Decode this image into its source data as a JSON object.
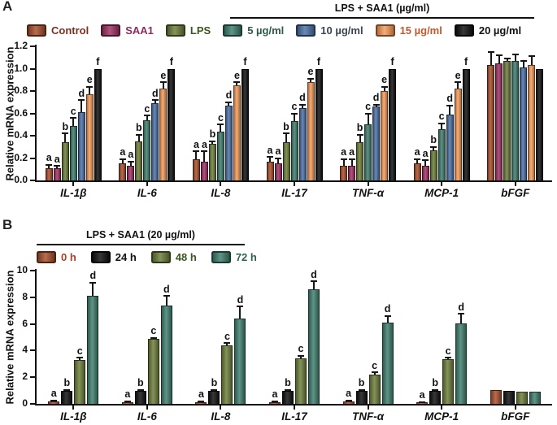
{
  "panelA": {
    "label": "A",
    "header": "LPS + SAA1 (µg/ml)",
    "legend": [
      {
        "label": "Control",
        "swatch": "#A9512E",
        "text": "#7E2F1D"
      },
      {
        "label": "SAA1",
        "swatch": "#A23367",
        "text": "#8E2B5C"
      },
      {
        "label": "LPS",
        "swatch": "#6E7E3C",
        "text": "#3C5520"
      },
      {
        "label": "5 µg/ml",
        "swatch": "#41806F",
        "text": "#2E5B44"
      },
      {
        "label": "10 µg/ml",
        "swatch": "#4E72A8",
        "text": "#3C4552"
      },
      {
        "label": "15 µg/ml",
        "swatch": "#F89D5C",
        "text": "#C05A2E"
      },
      {
        "label": "20 µg/ml",
        "swatch": "#121212",
        "text": "#121212"
      }
    ]
  },
  "panelB": {
    "label": "B",
    "header": "LPS + SAA1 (20 µg/ml)",
    "legend": [
      {
        "label": "0 h",
        "swatch": "#A9512E",
        "text": "#A8422A"
      },
      {
        "label": "24 h",
        "swatch": "#121212",
        "text": "#121212"
      },
      {
        "label": "48 h",
        "swatch": "#6E7E3C",
        "text": "#3C5520"
      },
      {
        "label": "72 h",
        "swatch": "#41806F",
        "text": "#2B5F50"
      }
    ]
  },
  "chart_data": [
    {
      "type": "bar",
      "panel": "A",
      "title": "LPS + SAA1 (µg/ml)",
      "ylabel": "Relative mRNA expression",
      "ylim": [
        0,
        1.2
      ],
      "yticks": [
        0,
        0.2,
        0.4,
        0.6,
        0.8,
        1.0,
        1.2
      ],
      "ytick_labels": [
        "0.0",
        "0.2",
        "0.4",
        "0.6",
        "0.8",
        "1.0",
        "1.2"
      ],
      "categories": [
        "IL-1β",
        "IL-6",
        "IL-8",
        "IL-17",
        "TNF-α",
        "MCP-1",
        "bFGF"
      ],
      "legend_position": "top",
      "grid": false,
      "series": [
        {
          "name": "Control",
          "color": "#A9512E",
          "values": [
            0.11,
            0.15,
            0.19,
            0.17,
            0.13,
            0.15,
            1.03
          ],
          "errors": [
            0.03,
            0.04,
            0.07,
            0.04,
            0.06,
            0.04,
            0.12
          ],
          "letters": [
            "a",
            "a",
            "a",
            "a",
            "a",
            "a",
            ""
          ]
        },
        {
          "name": "SAA1",
          "color": "#A23367",
          "values": [
            0.11,
            0.13,
            0.17,
            0.15,
            0.13,
            0.13,
            1.05
          ],
          "errors": [
            0.02,
            0.04,
            0.09,
            0.05,
            0.06,
            0.05,
            0.07
          ],
          "letters": [
            "a",
            "a",
            "a",
            "a",
            "a",
            "a",
            ""
          ]
        },
        {
          "name": "LPS",
          "color": "#6E7E3C",
          "values": [
            0.34,
            0.35,
            0.33,
            0.34,
            0.34,
            0.27,
            1.07
          ],
          "errors": [
            0.08,
            0.06,
            0.02,
            0.08,
            0.07,
            0.03,
            0.02
          ],
          "letters": [
            "b",
            "b",
            "b",
            "b",
            "b",
            "b",
            ""
          ]
        },
        {
          "name": "5 µg/ml",
          "color": "#41806F",
          "values": [
            0.49,
            0.54,
            0.44,
            0.53,
            0.5,
            0.46,
            1.07
          ],
          "errors": [
            0.07,
            0.04,
            0.06,
            0.07,
            0.1,
            0.05,
            0.06
          ],
          "letters": [
            "c",
            "c",
            "c",
            "c",
            "c",
            "c",
            ""
          ]
        },
        {
          "name": "10 µg/ml",
          "color": "#4E72A8",
          "values": [
            0.61,
            0.69,
            0.67,
            0.65,
            0.66,
            0.59,
            1.01
          ],
          "errors": [
            0.11,
            0.03,
            0.03,
            0.03,
            0.02,
            0.08,
            0.06
          ],
          "letters": [
            "d",
            "d",
            "d",
            "d",
            "d",
            "d",
            ""
          ]
        },
        {
          "name": "15 µg/ml",
          "color": "#F89D5C",
          "values": [
            0.77,
            0.82,
            0.85,
            0.88,
            0.8,
            0.82,
            1.03
          ],
          "errors": [
            0.07,
            0.06,
            0.03,
            0.03,
            0.04,
            0.06,
            0.08
          ],
          "letters": [
            "e",
            "e",
            "e",
            "e",
            "e",
            "e",
            ""
          ]
        },
        {
          "name": "20 µg/ml",
          "color": "#121212",
          "values": [
            1.0,
            1.0,
            1.0,
            1.0,
            1.0,
            1.0,
            1.0
          ],
          "errors": [
            0,
            0,
            0,
            0,
            0,
            0,
            0
          ],
          "letters": [
            "f",
            "f",
            "f",
            "f",
            "f",
            "f",
            ""
          ]
        }
      ]
    },
    {
      "type": "bar",
      "panel": "B",
      "title": "LPS + SAA1 (20 µg/ml)",
      "ylabel": "Relative mRNA expression",
      "ylim": [
        0,
        10
      ],
      "yticks": [
        0,
        2,
        4,
        6,
        8,
        10
      ],
      "ytick_labels": [
        "0",
        "2",
        "4",
        "6",
        "8",
        "10"
      ],
      "categories": [
        "IL-1β",
        "IL-6",
        "IL-8",
        "IL-17",
        "TNF-α",
        "MCP-1",
        "bFGF"
      ],
      "legend_position": "top",
      "grid": false,
      "series": [
        {
          "name": "0 h",
          "color": "#A9512E",
          "values": [
            0.2,
            0.15,
            0.15,
            0.15,
            0.2,
            0.1,
            1.05
          ],
          "errors": [
            0.05,
            0.05,
            0.05,
            0.05,
            0.05,
            0.05,
            0
          ],
          "letters": [
            "a",
            "a",
            "a",
            "a",
            "a",
            "a",
            ""
          ]
        },
        {
          "name": "24 h",
          "color": "#121212",
          "values": [
            1.0,
            1.0,
            1.0,
            1.0,
            1.0,
            1.0,
            1.0
          ],
          "errors": [
            0.05,
            0.05,
            0.05,
            0.05,
            0.05,
            0.05,
            0
          ],
          "letters": [
            "b",
            "b",
            "b",
            "b",
            "b",
            "b",
            ""
          ]
        },
        {
          "name": "48 h",
          "color": "#6E7E3C",
          "values": [
            3.3,
            4.85,
            4.4,
            3.4,
            2.2,
            3.35,
            0.9
          ],
          "errors": [
            0.15,
            0.1,
            0.15,
            0.2,
            0.15,
            0.1,
            0
          ],
          "letters": [
            "c",
            "c",
            "c",
            "c",
            "c",
            "c",
            ""
          ]
        },
        {
          "name": "72 h",
          "color": "#41806F",
          "values": [
            8.1,
            7.4,
            6.4,
            8.6,
            6.1,
            6.05,
            0.9
          ],
          "errors": [
            1.0,
            0.7,
            0.9,
            0.6,
            0.5,
            0.7,
            0
          ],
          "letters": [
            "d",
            "d",
            "d",
            "d",
            "d",
            "d",
            ""
          ]
        }
      ]
    }
  ]
}
